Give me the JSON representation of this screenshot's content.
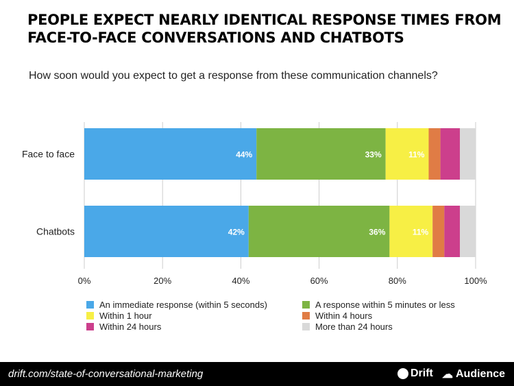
{
  "title": "PEOPLE EXPECT NEARLY IDENTICAL RESPONSE TIMES FROM FACE-TO-FACE CONVERSATIONS AND CHATBOTS",
  "subtitle": "How soon would you expect to get a response from these communication channels?",
  "chart_data": {
    "type": "bar",
    "orientation": "horizontal",
    "stacked": true,
    "categories": [
      "Face to face",
      "Chatbots"
    ],
    "xlim": [
      0,
      100
    ],
    "xticks": [
      "0%",
      "20%",
      "40%",
      "60%",
      "80%",
      "100%"
    ],
    "grid": true,
    "legend_position": "bottom",
    "series": [
      {
        "name": "An immediate response (within 5 seconds)",
        "color": "#4aa8e8",
        "values": [
          44,
          42
        ],
        "labels": [
          "44%",
          "42%"
        ]
      },
      {
        "name": "A response within 5 minutes or less",
        "color": "#7db443",
        "values": [
          33,
          36
        ],
        "labels": [
          "33%",
          "36%"
        ]
      },
      {
        "name": "Within 1 hour",
        "color": "#f7ef45",
        "values": [
          11,
          11
        ],
        "labels": [
          "11%",
          "11%"
        ]
      },
      {
        "name": "Within 4 hours",
        "color": "#e07c45",
        "values": [
          3,
          3
        ]
      },
      {
        "name": "Within 24 hours",
        "color": "#cc3f8c",
        "values": [
          5,
          4
        ]
      },
      {
        "name": "More than 24 hours",
        "color": "#d9d9d9",
        "values": [
          4,
          4
        ]
      }
    ]
  },
  "footer": {
    "url": "drift.com/state-of-conversational-marketing",
    "brand1": "Drift",
    "brand2": "Audience"
  }
}
